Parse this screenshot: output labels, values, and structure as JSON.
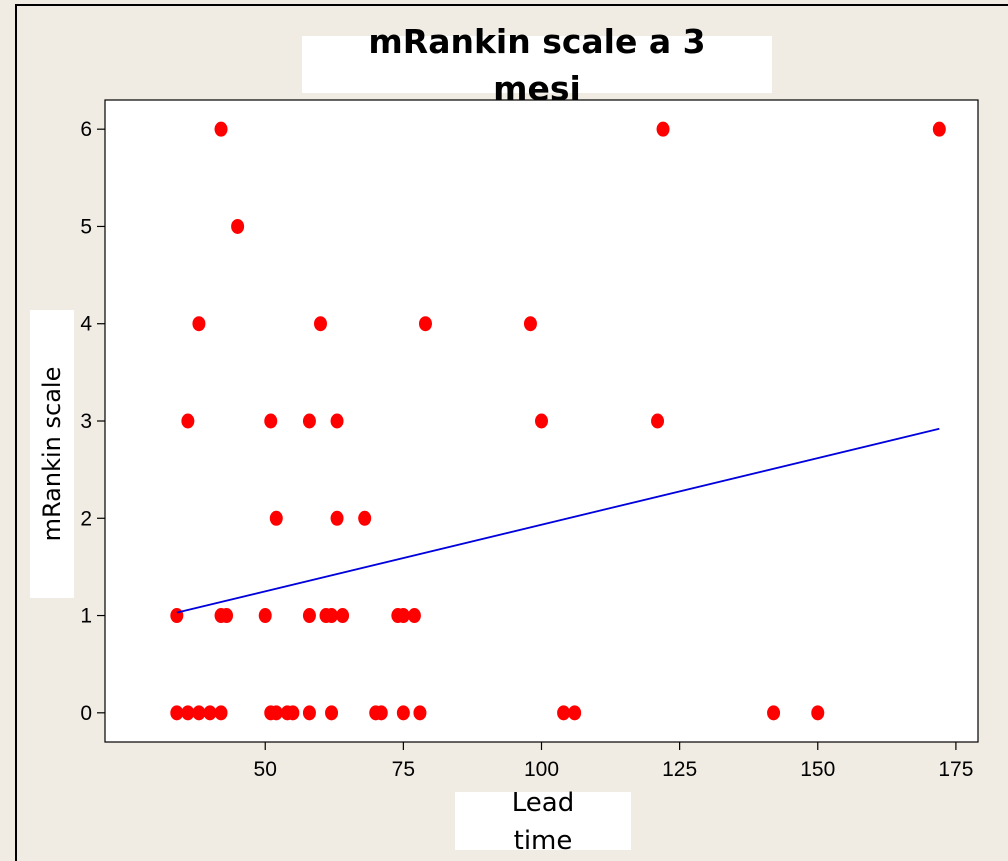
{
  "chart_data": {
    "type": "scatter",
    "title": "mRankin scale a 3 mesi",
    "title_lines": [
      "mRankin scale a 3",
      "mesi"
    ],
    "xlabel": "Lead time",
    "xlabel_lines": [
      "Lead",
      "time"
    ],
    "ylabel": "mRankin scale",
    "xlim": [
      21,
      179
    ],
    "ylim": [
      -0.3,
      6.3
    ],
    "xticks": [
      50,
      75,
      100,
      125,
      150,
      175
    ],
    "yticks": [
      0,
      1,
      2,
      3,
      4,
      5,
      6
    ],
    "grid": false,
    "legend": false,
    "colors": {
      "points": "#ff0000",
      "fit_line": "#0000dd",
      "background": "#f0ece3",
      "plot_area": "#ffffff"
    },
    "points": [
      [
        42,
        6
      ],
      [
        122,
        6
      ],
      [
        172,
        6
      ],
      [
        45,
        5
      ],
      [
        38,
        4
      ],
      [
        60,
        4
      ],
      [
        79,
        4
      ],
      [
        98,
        4
      ],
      [
        36,
        3
      ],
      [
        51,
        3
      ],
      [
        58,
        3
      ],
      [
        63,
        3
      ],
      [
        100,
        3
      ],
      [
        121,
        3
      ],
      [
        52,
        2
      ],
      [
        63,
        2
      ],
      [
        68,
        2
      ],
      [
        34,
        1
      ],
      [
        42,
        1
      ],
      [
        43,
        1
      ],
      [
        50,
        1
      ],
      [
        58,
        1
      ],
      [
        61,
        1
      ],
      [
        62,
        1
      ],
      [
        64,
        1
      ],
      [
        74,
        1
      ],
      [
        75,
        1
      ],
      [
        77,
        1
      ],
      [
        34,
        0
      ],
      [
        36,
        0
      ],
      [
        38,
        0
      ],
      [
        40,
        0
      ],
      [
        42,
        0
      ],
      [
        51,
        0
      ],
      [
        52,
        0
      ],
      [
        54,
        0
      ],
      [
        55,
        0
      ],
      [
        58,
        0
      ],
      [
        62,
        0
      ],
      [
        70,
        0
      ],
      [
        71,
        0
      ],
      [
        75,
        0
      ],
      [
        78,
        0
      ],
      [
        104,
        0
      ],
      [
        106,
        0
      ],
      [
        142,
        0
      ],
      [
        150,
        0
      ]
    ],
    "fit_line": {
      "x": [
        34,
        172
      ],
      "y": [
        1.03,
        2.92
      ]
    }
  }
}
